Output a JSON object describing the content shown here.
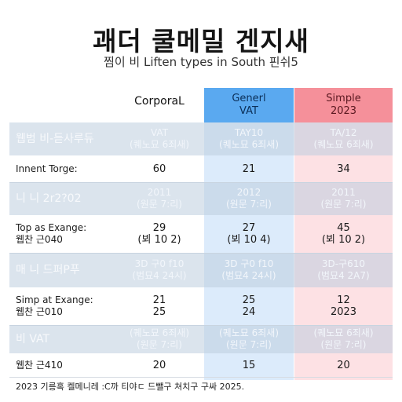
{
  "title": "괘더 쿨메밀 겐지새",
  "subtitle": "찜이 비 Liften types in South 핀쉬5",
  "headers": {
    "corporal": "CorporaL",
    "general": [
      "Generl",
      "VAT"
    ],
    "simple": [
      "Simple",
      "2023"
    ]
  },
  "rows": [
    {
      "label": [
        "웹범 비-듣사루듀"
      ],
      "corp": [
        "VAT",
        "(퀘노묘 6죄새)"
      ],
      "blue": [
        "TAY10",
        "(퀘노묘 6죄새)"
      ],
      "pink": [
        "TA/12",
        "(퀘노묘 6죄새)"
      ],
      "shade": true
    },
    {
      "label": [
        "Innent Torge:"
      ],
      "corp": [
        "60"
      ],
      "blue": [
        "21"
      ],
      "pink": [
        "34"
      ],
      "shade": false
    },
    {
      "label": [
        "니 니 2r2?02"
      ],
      "corp": [
        "2011",
        "(원문 7:리)"
      ],
      "blue": [
        "2012",
        "(원문 7:리)"
      ],
      "pink": [
        "2011",
        "(원문 7:리)"
      ],
      "shade": true
    },
    {
      "label": [
        "Top as Exange:",
        "웹찬 근040"
      ],
      "corp": [
        "29",
        "(뵈 10 2)"
      ],
      "blue": [
        "27",
        "(뵈 10 4)"
      ],
      "pink": [
        "45",
        "(뵈 10 2)"
      ],
      "shade": false
    },
    {
      "label": [
        "매 니 드퍼P푸"
      ],
      "corp": [
        "3D 구0 f10",
        "(범묘4 24시)"
      ],
      "blue": [
        "3D 구0 f10",
        "(범묘4 24시)"
      ],
      "pink": [
        "3D-구610",
        "(범묘4 2A7)"
      ],
      "shade": true
    },
    {
      "label": [
        "Simp at Exange:",
        "웹찬 근010"
      ],
      "corp": [
        "21",
        "25"
      ],
      "blue": [
        "25",
        "24"
      ],
      "pink": [
        "12",
        "2023"
      ],
      "shade": false
    },
    {
      "label": [
        "비 VAT"
      ],
      "corp": [
        "(퀘노묘 6죄새)",
        "(원문 7:리)"
      ],
      "blue": [
        "(퀘노묘 6죄새)",
        "(원문 7:리)"
      ],
      "pink": [
        "(퀘노묘 6죄새)",
        "(원문 7:리)"
      ],
      "shade": true
    },
    {
      "label": [
        "웹찬 근410"
      ],
      "corp": [
        "20"
      ],
      "blue": [
        "15"
      ],
      "pink": [
        "20"
      ],
      "shade": false
    }
  ],
  "footer": "2023 기릉혹 켈메니레 :C까 티야ㄷ 드뺄구 쳐치구 구싸 2025."
}
